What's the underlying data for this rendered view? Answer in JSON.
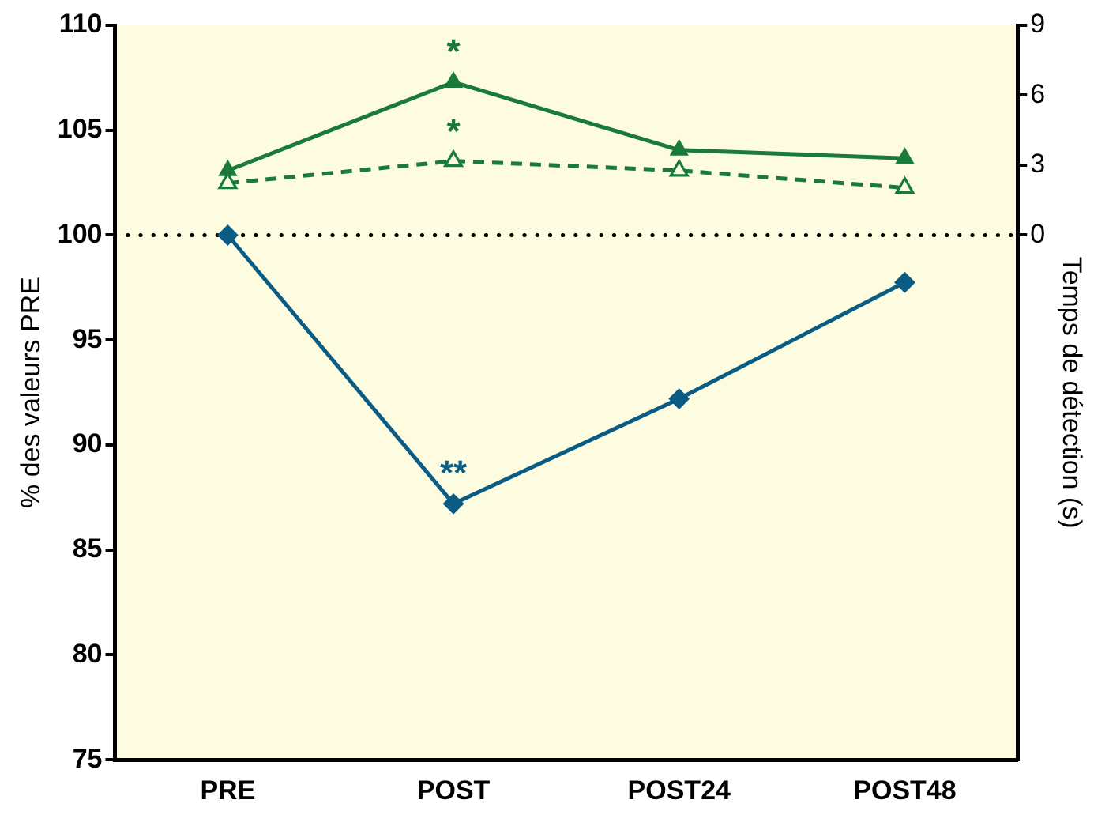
{
  "chart_data": {
    "type": "line",
    "ylabel": "% des valeurs PRE",
    "y2label": "Temps de détection (s)",
    "categories": [
      "PRE",
      "POST",
      "POST24",
      "POST48"
    ],
    "series": [
      {
        "color": "#1a7a3a",
        "values": [
          2.77,
          6.56,
          3.65,
          3.3
        ],
        "axis": "y2",
        "marker": "triangle",
        "line_style": "solid"
      },
      {
        "color": "#1a7a3a",
        "values": [
          2.23,
          3.18,
          2.77,
          2.03
        ],
        "axis": "y2",
        "marker": "triangle",
        "line_style": "dashed"
      },
      {
        "color": "#0b5c85",
        "values": [
          100,
          87.2,
          92.2,
          97.75
        ],
        "marker": "diamond",
        "line_style": "solid"
      }
    ],
    "ylim": [
      75,
      110
    ],
    "yticks": [
      75,
      80,
      85,
      90,
      95,
      100,
      105,
      110
    ],
    "y2lim": [
      -22.5,
      9
    ],
    "y2ticks": [
      0,
      3,
      6,
      9
    ],
    "ref_lines": [
      {
        "axis": "y",
        "value": 100,
        "line_style": "dotted",
        "color": "#000000"
      }
    ],
    "annotations": [
      {
        "text": "*",
        "x": "POST",
        "y": 107.3
      },
      {
        "text": "*",
        "x": "POST",
        "y": 103.5
      },
      {
        "text": "**",
        "x": "POST",
        "y": 87.2
      }
    ],
    "grid": false,
    "legend": false
  }
}
